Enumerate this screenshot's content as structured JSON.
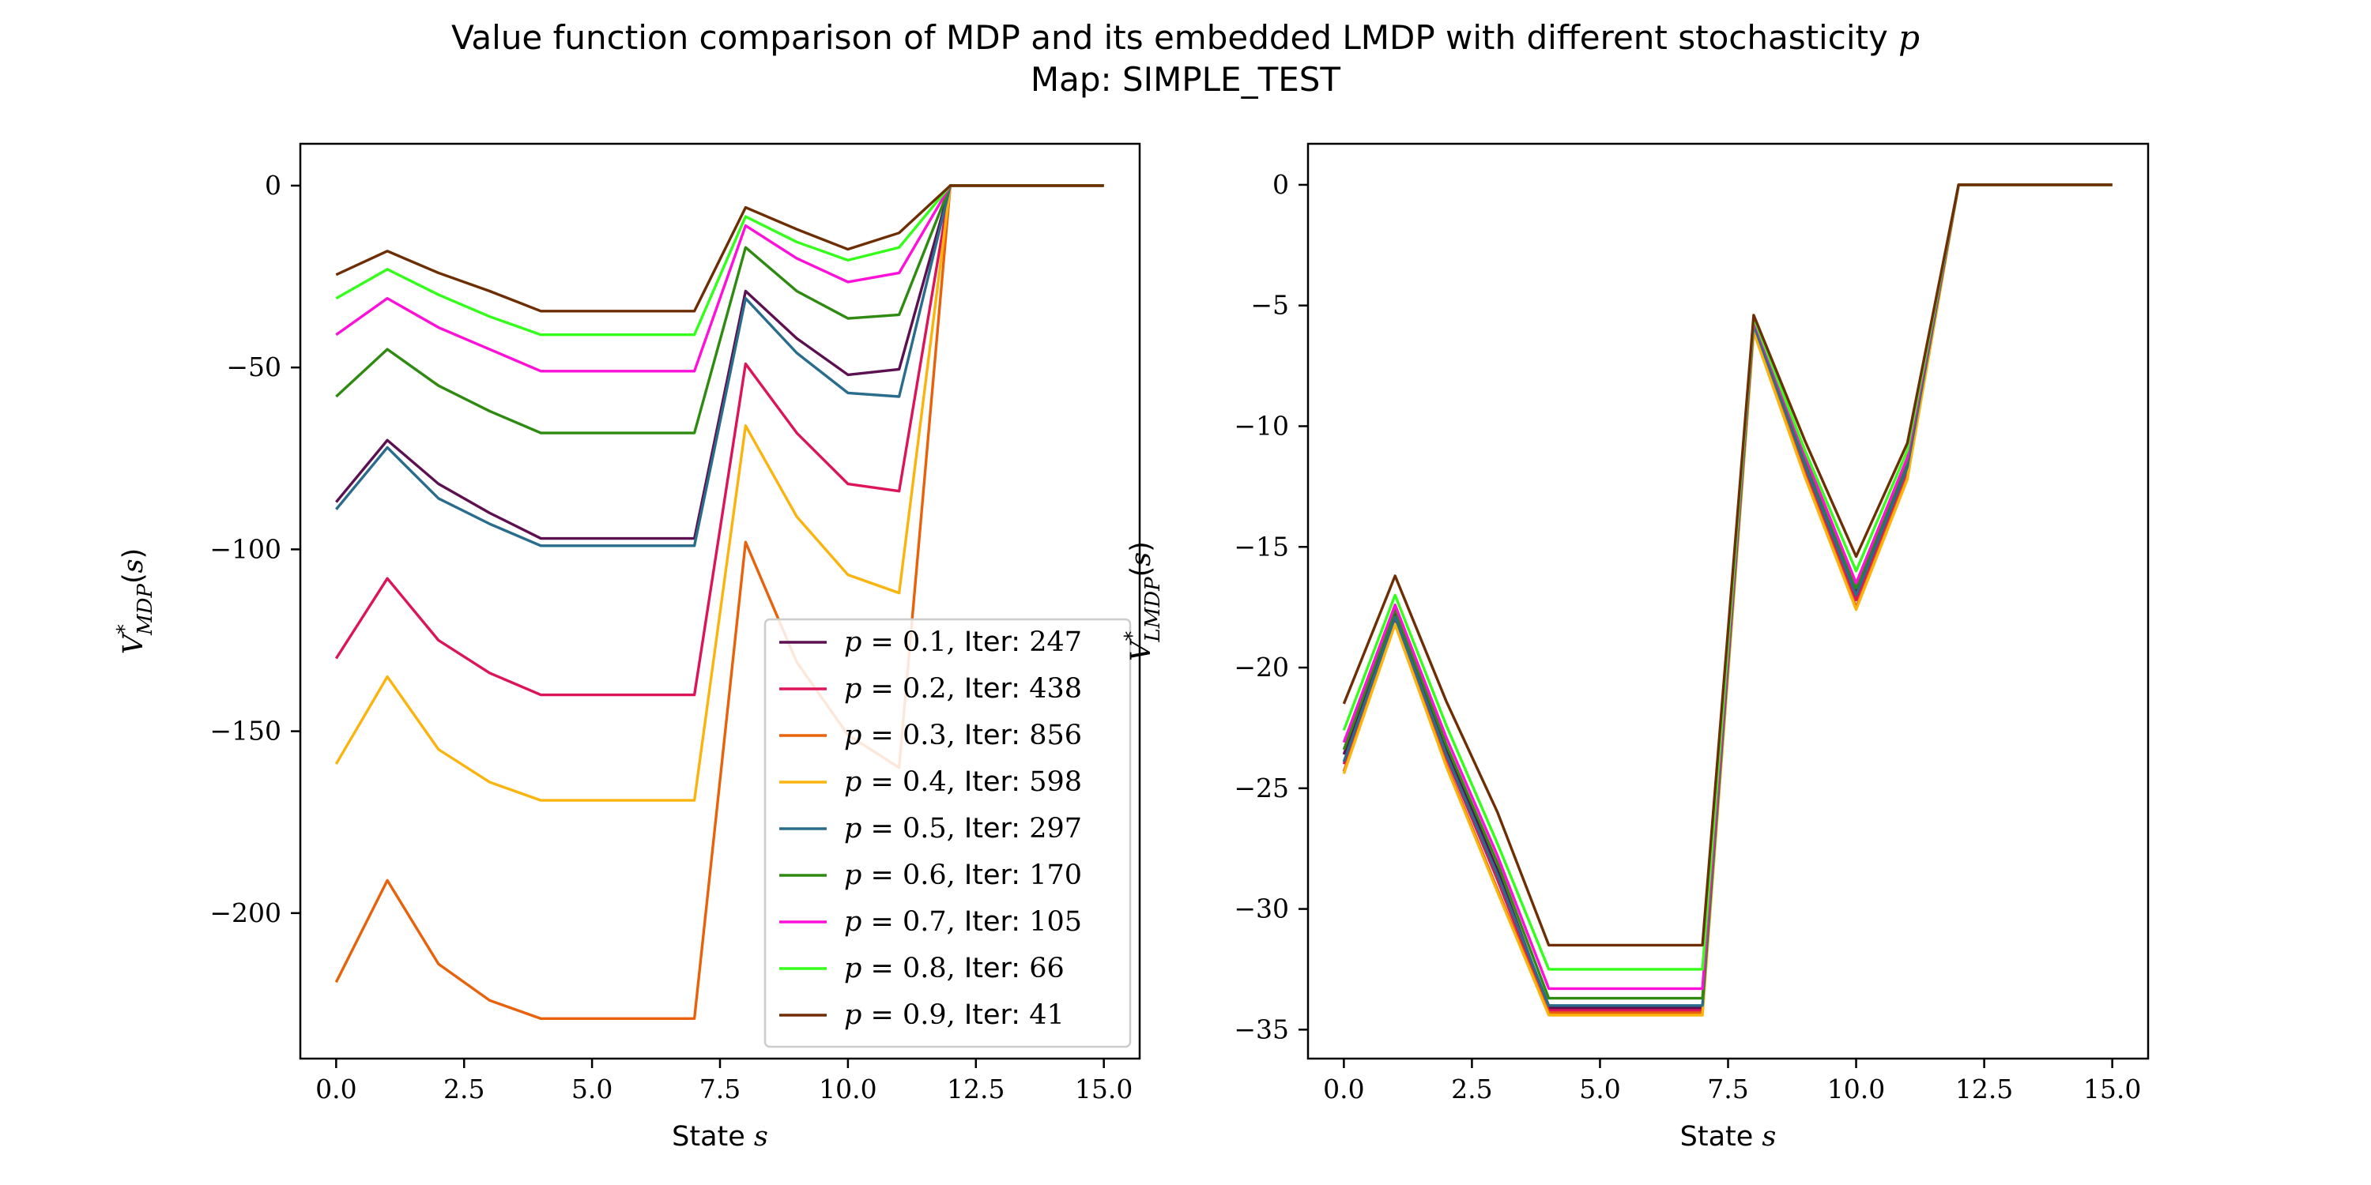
{
  "figure": {
    "title_line1_prefix": "Value function comparison of MDP and its embedded LMDP with different stochasticity ",
    "title_line1_symbol": "p",
    "title_line2": "Map: SIMPLE_TEST"
  },
  "chart_data": [
    {
      "type": "line",
      "xlabel": "State s",
      "ylabel": "V*_MDP(s)",
      "xlim": [
        -0.7,
        15.7
      ],
      "ylim": [
        -240,
        11.5
      ],
      "xticks": [
        0,
        2.5,
        5,
        7.5,
        10,
        12.5,
        15
      ],
      "xtick_labels": [
        "0.0",
        "2.5",
        "5.0",
        "7.5",
        "10.0",
        "12.5",
        "15.0"
      ],
      "yticks": [
        0,
        -50,
        -100,
        -150,
        -200
      ],
      "ytick_labels": [
        "0",
        "−50",
        "−100",
        "−150",
        "−200"
      ],
      "legend_position": "lower-right",
      "grid": false,
      "x": [
        0,
        1,
        2,
        3,
        4,
        5,
        6,
        7,
        8,
        9,
        10,
        11,
        12,
        13,
        14,
        15
      ],
      "series": [
        {
          "name": "p = 0.1, Iter: 247",
          "color": "#5c1050",
          "values": [
            -87,
            -70,
            -82,
            -90,
            -97,
            -97,
            -97,
            -97,
            -29,
            -42,
            -52,
            -50.5,
            0,
            0,
            0,
            0
          ]
        },
        {
          "name": "p = 0.2, Iter: 438",
          "color": "#dc1458",
          "values": [
            -130,
            -108,
            -125,
            -134,
            -140,
            -140,
            -140,
            -140,
            -49,
            -68,
            -82,
            -84,
            0,
            0,
            0,
            0
          ]
        },
        {
          "name": "p = 0.3, Iter: 856",
          "color": "#e8620c",
          "values": [
            -219,
            -191,
            -214,
            -224,
            -229,
            -229,
            -229,
            -229,
            -98,
            -131,
            -151,
            -160,
            0,
            0,
            0,
            0
          ]
        },
        {
          "name": "p = 0.4, Iter: 598",
          "color": "#fbb40e",
          "values": [
            -159,
            -135,
            -155,
            -164,
            -169,
            -169,
            -169,
            -169,
            -66,
            -91,
            -107,
            -112,
            0,
            0,
            0,
            0
          ]
        },
        {
          "name": "p = 0.5, Iter: 297",
          "color": "#2a6c8c",
          "values": [
            -89,
            -72,
            -86,
            -93,
            -99,
            -99,
            -99,
            -99,
            -31,
            -46,
            -57,
            -58,
            0,
            0,
            0,
            0
          ]
        },
        {
          "name": "p = 0.6, Iter: 170",
          "color": "#2e8a10",
          "values": [
            -58,
            -45,
            -55,
            -62,
            -68,
            -68,
            -68,
            -68,
            -17,
            -29,
            -36.5,
            -35.5,
            0,
            0,
            0,
            0
          ]
        },
        {
          "name": "p = 0.7, Iter: 105",
          "color": "#ff10d8",
          "values": [
            -41,
            -31,
            -39,
            -45,
            -51,
            -51,
            -51,
            -51,
            -11,
            -20,
            -26.5,
            -24,
            0,
            0,
            0,
            0
          ]
        },
        {
          "name": "p = 0.8, Iter: 66",
          "color": "#33ff1a",
          "values": [
            -31,
            -23,
            -30,
            -36,
            -41,
            -41,
            -41,
            -41,
            -8.5,
            -15.5,
            -20.5,
            -17,
            0,
            0,
            0,
            0
          ]
        },
        {
          "name": "p = 0.9, Iter: 41",
          "color": "#6e2e04",
          "values": [
            -24.5,
            -18,
            -24,
            -29,
            -34.5,
            -34.5,
            -34.5,
            -34.5,
            -6,
            -12,
            -17.5,
            -13,
            0,
            0,
            0,
            0
          ]
        }
      ]
    },
    {
      "type": "line",
      "xlabel": "State s",
      "ylabel": "V*_LMDP(s)",
      "xlim": [
        -0.7,
        15.7
      ],
      "ylim": [
        -36.2,
        1.7
      ],
      "xticks": [
        0,
        2.5,
        5,
        7.5,
        10,
        12.5,
        15
      ],
      "xtick_labels": [
        "0.0",
        "2.5",
        "5.0",
        "7.5",
        "10.0",
        "12.5",
        "15.0"
      ],
      "yticks": [
        0,
        -5,
        -10,
        -15,
        -20,
        -25,
        -30,
        -35
      ],
      "ytick_labels": [
        "0",
        "−5",
        "−10",
        "−15",
        "−20",
        "−25",
        "−30",
        "−35"
      ],
      "grid": false,
      "x": [
        0,
        1,
        2,
        3,
        4,
        5,
        6,
        7,
        8,
        9,
        10,
        11,
        12,
        13,
        14,
        15
      ],
      "series": [
        {
          "color": "#5c1050",
          "values": [
            -23.6,
            -17.8,
            -23.4,
            -28.4,
            -34.1,
            -34.1,
            -34.1,
            -34.1,
            -5.8,
            -11.5,
            -16.9,
            -11.6,
            0,
            0,
            0,
            0
          ]
        },
        {
          "color": "#dc1458",
          "values": [
            -24.0,
            -18.0,
            -23.7,
            -28.8,
            -34.2,
            -34.2,
            -34.2,
            -34.2,
            -5.9,
            -11.8,
            -17.2,
            -11.9,
            0,
            0,
            0,
            0
          ]
        },
        {
          "color": "#e8620c",
          "values": [
            -24.3,
            -18.2,
            -24.0,
            -29.2,
            -34.3,
            -34.3,
            -34.3,
            -34.3,
            -6.0,
            -12.0,
            -17.5,
            -12.1,
            0,
            0,
            0,
            0
          ]
        },
        {
          "color": "#fbb40e",
          "values": [
            -24.4,
            -18.2,
            -24.1,
            -29.3,
            -34.4,
            -34.4,
            -34.4,
            -34.4,
            -6.1,
            -12.1,
            -17.6,
            -12.2,
            0,
            0,
            0,
            0
          ]
        },
        {
          "color": "#2a6c8c",
          "values": [
            -23.9,
            -17.9,
            -23.6,
            -28.6,
            -34.0,
            -34.0,
            -34.0,
            -34.0,
            -5.8,
            -11.6,
            -17.0,
            -11.7,
            0,
            0,
            0,
            0
          ]
        },
        {
          "color": "#2e8a10",
          "values": [
            -23.4,
            -17.6,
            -23.2,
            -28.1,
            -33.7,
            -33.7,
            -33.7,
            -33.7,
            -5.6,
            -11.3,
            -16.7,
            -11.4,
            0,
            0,
            0,
            0
          ]
        },
        {
          "color": "#ff10d8",
          "values": [
            -23.1,
            -17.4,
            -22.9,
            -27.8,
            -33.3,
            -33.3,
            -33.3,
            -33.3,
            -5.6,
            -11.2,
            -16.5,
            -11.3,
            0,
            0,
            0,
            0
          ]
        },
        {
          "color": "#33ff1a",
          "values": [
            -22.6,
            -17.0,
            -22.4,
            -27.3,
            -32.5,
            -32.5,
            -32.5,
            -32.5,
            -5.5,
            -11.0,
            -16.0,
            -11.0,
            0,
            0,
            0,
            0
          ]
        },
        {
          "color": "#6e2e04",
          "values": [
            -21.5,
            -16.2,
            -21.4,
            -26.0,
            -31.5,
            -31.5,
            -31.5,
            -31.5,
            -5.4,
            -10.6,
            -15.4,
            -10.7,
            0,
            0,
            0,
            0
          ]
        }
      ]
    }
  ]
}
